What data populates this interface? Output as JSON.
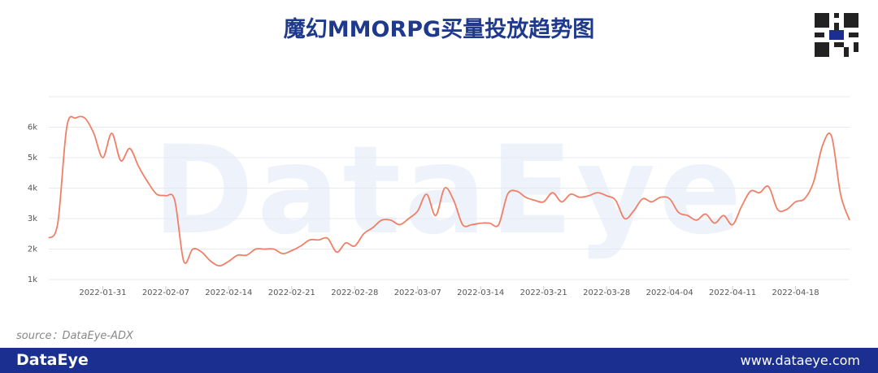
{
  "header": {
    "title": "魔幻MMORPG买量投放趋势图"
  },
  "chart_data": {
    "type": "line",
    "watermark": "DataEye",
    "x": [
      "2022-01-25",
      "2022-01-26",
      "2022-01-27",
      "2022-01-28",
      "2022-01-29",
      "2022-01-30",
      "2022-01-31",
      "2022-02-01",
      "2022-02-02",
      "2022-02-03",
      "2022-02-04",
      "2022-02-05",
      "2022-02-06",
      "2022-02-07",
      "2022-02-08",
      "2022-02-09",
      "2022-02-10",
      "2022-02-11",
      "2022-02-12",
      "2022-02-13",
      "2022-02-14",
      "2022-02-15",
      "2022-02-16",
      "2022-02-17",
      "2022-02-18",
      "2022-02-19",
      "2022-02-20",
      "2022-02-21",
      "2022-02-22",
      "2022-02-23",
      "2022-02-24",
      "2022-02-25",
      "2022-02-26",
      "2022-02-27",
      "2022-02-28",
      "2022-03-01",
      "2022-03-02",
      "2022-03-03",
      "2022-03-04",
      "2022-03-05",
      "2022-03-06",
      "2022-03-07",
      "2022-03-08",
      "2022-03-09",
      "2022-03-10",
      "2022-03-11",
      "2022-03-12",
      "2022-03-13",
      "2022-03-14",
      "2022-03-15",
      "2022-03-16",
      "2022-03-17",
      "2022-03-18",
      "2022-03-19",
      "2022-03-20",
      "2022-03-21",
      "2022-03-22",
      "2022-03-23",
      "2022-03-24",
      "2022-03-25",
      "2022-03-26",
      "2022-03-27",
      "2022-03-28",
      "2022-03-29",
      "2022-03-30",
      "2022-03-31",
      "2022-04-01",
      "2022-04-02",
      "2022-04-03",
      "2022-04-04",
      "2022-04-05",
      "2022-04-06",
      "2022-04-07",
      "2022-04-08",
      "2022-04-09",
      "2022-04-10",
      "2022-04-11",
      "2022-04-12",
      "2022-04-13",
      "2022-04-14",
      "2022-04-15",
      "2022-04-16",
      "2022-04-17",
      "2022-04-18",
      "2022-04-19",
      "2022-04-20",
      "2022-04-21",
      "2022-04-22",
      "2022-04-23",
      "2022-04-24"
    ],
    "series": [
      {
        "color": "#f07f66",
        "values": [
          2360,
          2850,
          6000,
          6300,
          6300,
          5800,
          5000,
          5800,
          4900,
          5300,
          4700,
          4200,
          3800,
          3750,
          3600,
          1600,
          2000,
          1900,
          1600,
          1450,
          1600,
          1800,
          1800,
          2000,
          2000,
          2000,
          1850,
          1950,
          2100,
          2300,
          2300,
          2350,
          1900,
          2200,
          2100,
          2500,
          2700,
          2950,
          2950,
          2800,
          3000,
          3250,
          3800,
          3100,
          4000,
          3600,
          2800,
          2800,
          2850,
          2850,
          2800,
          3800,
          3900,
          3700,
          3600,
          3550,
          3850,
          3550,
          3800,
          3700,
          3750,
          3850,
          3750,
          3600,
          3000,
          3250,
          3650,
          3550,
          3700,
          3650,
          3200,
          3100,
          2950,
          3150,
          2850,
          3100,
          2800,
          3400,
          3900,
          3850,
          4050,
          3300,
          3300,
          3550,
          3650,
          4200,
          5400,
          5700,
          3800,
          2950
        ]
      }
    ],
    "xlim": [
      "2022-01-25",
      "2022-04-24"
    ],
    "xticks": [
      "2022-01-31",
      "2022-02-07",
      "2022-02-14",
      "2022-02-21",
      "2022-02-28",
      "2022-03-07",
      "2022-03-14",
      "2022-03-21",
      "2022-03-28",
      "2022-04-04",
      "2022-04-11",
      "2022-04-18"
    ],
    "ylim": [
      1000,
      7000
    ],
    "yticks": [
      {
        "value": 1000,
        "label": "1k"
      },
      {
        "value": 2000,
        "label": "2k"
      },
      {
        "value": 3000,
        "label": "3k"
      },
      {
        "value": 4000,
        "label": "4k"
      },
      {
        "value": 5000,
        "label": "5k"
      },
      {
        "value": 6000,
        "label": "6k"
      }
    ],
    "grid": true
  },
  "source": "source：DataEye-ADX",
  "footer": {
    "brand": "DataEye",
    "url": "www.dataeye.com"
  }
}
